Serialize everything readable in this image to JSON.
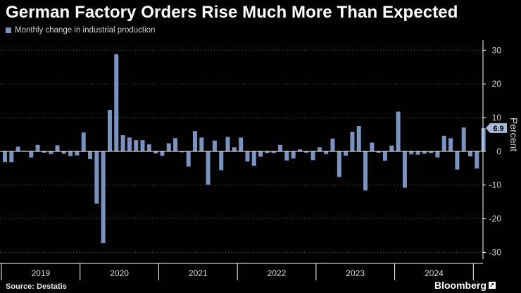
{
  "title": "German Factory Orders Rise Much More Than Expected",
  "source": "Source: Destatis",
  "brand": "Bloomberg",
  "brand_mark": "↗",
  "chart_data": {
    "type": "bar",
    "title": "German Factory Orders Rise Much More Than Expected",
    "series": [
      {
        "name": "Monthly change in industrial production",
        "color": "#7b93c0",
        "values": [
          -3.2,
          -3.2,
          1.4,
          0.2,
          -1.8,
          1.9,
          -0.4,
          -0.8,
          1.8,
          -0.7,
          -1.4,
          -1.2,
          5.6,
          -2.3,
          -15.5,
          -27.2,
          12.3,
          28.8,
          4.8,
          4.1,
          3.3,
          3.3,
          2.1,
          -0.6,
          -1.3,
          2.4,
          3.9,
          -0.3,
          -4.5,
          6.0,
          4.1,
          -9.9,
          3.2,
          -5.6,
          4.3,
          1.2,
          4.1,
          -3.0,
          -4.3,
          -1.6,
          -0.5,
          -0.5,
          1.9,
          -2.7,
          -2.1,
          0.6,
          -0.4,
          -2.6,
          1.2,
          -0.8,
          3.8,
          -7.6,
          -1.3,
          5.8,
          7.5,
          -11.6,
          2.6,
          -0.4,
          -2.8,
          1.7,
          11.8,
          -10.8,
          -0.9,
          -1.0,
          -0.7,
          -0.5,
          -1.8,
          4.6,
          3.9,
          -5.4,
          7.1,
          -1.5,
          -5.1,
          6.9
        ]
      }
    ],
    "year_labels": [
      "2019",
      "2020",
      "2021",
      "2022",
      "2023",
      "2024"
    ],
    "start": "2019-01",
    "ylim": [
      -32,
      33
    ],
    "yticks": [
      30,
      20,
      10,
      0,
      -10,
      -20,
      -30
    ],
    "ylabel": "Percent",
    "last_value_label": "6.9",
    "grid": "horizontal dotted"
  }
}
